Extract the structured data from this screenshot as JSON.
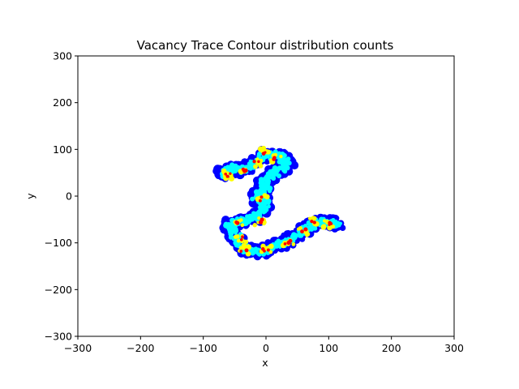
{
  "chart_data": {
    "type": "heatmap",
    "title": "Vacancy Trace Contour distribution counts",
    "xlabel": "x",
    "ylabel": "y",
    "xlim": [
      -300,
      300
    ],
    "ylim": [
      -300,
      300
    ],
    "x_ticks": [
      -300,
      -200,
      -100,
      0,
      100,
      200,
      300
    ],
    "y_ticks": [
      -300,
      -200,
      -100,
      0,
      100,
      200,
      300
    ],
    "x_tick_labels": [
      "−300",
      "−200",
      "−100",
      "0",
      "100",
      "200",
      "300"
    ],
    "y_tick_labels": [
      "−300",
      "−200",
      "−100",
      "0",
      "100",
      "200",
      "300"
    ],
    "grid": false,
    "colormap": "jet",
    "colors": {
      "low": "#0000ff",
      "mid_low": "#00ffff",
      "mid": "#ffff00",
      "high": "#ff0000",
      "axis": "#000000"
    },
    "path_x": [
      -70,
      -55,
      -40,
      -25,
      -10,
      5,
      20,
      35,
      25,
      10,
      -5,
      0,
      -15,
      0,
      -5,
      -20,
      -40,
      -60,
      -50,
      -40,
      -30,
      -10,
      10,
      30,
      50,
      65,
      80,
      100,
      115
    ],
    "path_y": [
      45,
      60,
      55,
      65,
      80,
      90,
      85,
      75,
      60,
      45,
      30,
      15,
      0,
      -15,
      -30,
      -45,
      -55,
      -60,
      -80,
      -100,
      -115,
      -120,
      -110,
      -100,
      -85,
      -70,
      -55,
      -55,
      -60
    ],
    "hotspots": [
      {
        "x": -60,
        "y": 45,
        "level": 1.0
      },
      {
        "x": -35,
        "y": 55,
        "level": 0.9
      },
      {
        "x": -15,
        "y": 70,
        "level": 1.0
      },
      {
        "x": 0,
        "y": 95,
        "level": 0.8
      },
      {
        "x": 15,
        "y": 80,
        "level": 0.7
      },
      {
        "x": -5,
        "y": -5,
        "level": 0.6
      },
      {
        "x": -10,
        "y": -55,
        "level": 0.7
      },
      {
        "x": -45,
        "y": -55,
        "level": 0.5
      },
      {
        "x": -40,
        "y": -90,
        "level": 0.6
      },
      {
        "x": -35,
        "y": -115,
        "level": 0.8
      },
      {
        "x": 0,
        "y": -115,
        "level": 0.9
      },
      {
        "x": 35,
        "y": -100,
        "level": 0.9
      },
      {
        "x": 60,
        "y": -75,
        "level": 0.7
      },
      {
        "x": 75,
        "y": -55,
        "level": 0.7
      },
      {
        "x": 100,
        "y": -60,
        "level": 0.9
      }
    ]
  }
}
